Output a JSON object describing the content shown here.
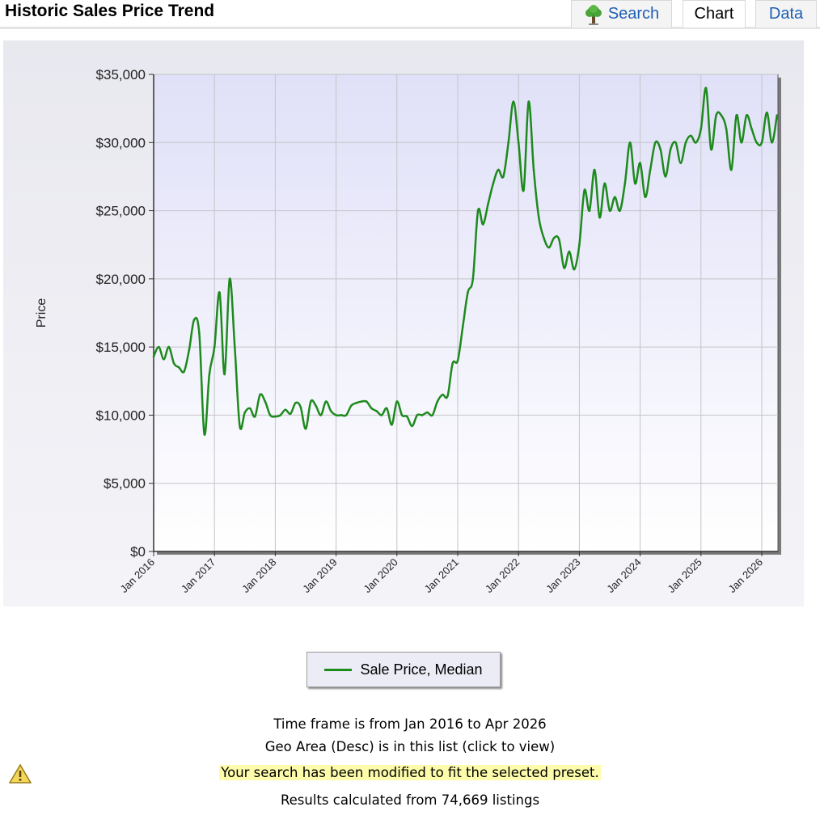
{
  "header": {
    "title": "Historic Sales Price Trend",
    "tabs": {
      "search": "Search",
      "chart": "Chart",
      "data": "Data"
    }
  },
  "colors": {
    "line": "#1e8a1e",
    "link": "#1f5fb5",
    "highlight": "#fdfcab"
  },
  "chart_data": {
    "type": "line",
    "title": "",
    "xlabel": "",
    "ylabel": "Price",
    "ylim": [
      0,
      35000
    ],
    "xlim": [
      "2016-01",
      "2026-04"
    ],
    "grid": true,
    "legend_position": "bottom",
    "y_ticks": [
      {
        "value": 0,
        "label": "$0"
      },
      {
        "value": 5000,
        "label": "$5,000"
      },
      {
        "value": 10000,
        "label": "$10,000"
      },
      {
        "value": 15000,
        "label": "$15,000"
      },
      {
        "value": 20000,
        "label": "$20,000"
      },
      {
        "value": 25000,
        "label": "$25,000"
      },
      {
        "value": 30000,
        "label": "$30,000"
      },
      {
        "value": 35000,
        "label": "$35,000"
      }
    ],
    "x_ticks": [
      {
        "value": "2016-01",
        "label": "Jan 2016"
      },
      {
        "value": "2017-01",
        "label": "Jan 2017"
      },
      {
        "value": "2018-01",
        "label": "Jan 2018"
      },
      {
        "value": "2019-01",
        "label": "Jan 2019"
      },
      {
        "value": "2020-01",
        "label": "Jan 2020"
      },
      {
        "value": "2021-01",
        "label": "Jan 2021"
      },
      {
        "value": "2022-01",
        "label": "Jan 2022"
      },
      {
        "value": "2023-01",
        "label": "Jan 2023"
      },
      {
        "value": "2024-01",
        "label": "Jan 2024"
      },
      {
        "value": "2025-01",
        "label": "Jan 2025"
      },
      {
        "value": "2026-01",
        "label": "Jan 2026"
      }
    ],
    "series": [
      {
        "name": "Sale Price, Median",
        "points": [
          [
            "2016-01",
            14300
          ],
          [
            "2016-02",
            15000
          ],
          [
            "2016-03",
            14100
          ],
          [
            "2016-04",
            15000
          ],
          [
            "2016-05",
            13800
          ],
          [
            "2016-06",
            13500
          ],
          [
            "2016-07",
            13200
          ],
          [
            "2016-08",
            14800
          ],
          [
            "2016-09",
            17000
          ],
          [
            "2016-10",
            16000
          ],
          [
            "2016-11",
            8600
          ],
          [
            "2016-12",
            13000
          ],
          [
            "2017-01",
            15000
          ],
          [
            "2017-02",
            19000
          ],
          [
            "2017-03",
            13000
          ],
          [
            "2017-04",
            20000
          ],
          [
            "2017-05",
            15000
          ],
          [
            "2017-06",
            9200
          ],
          [
            "2017-07",
            10200
          ],
          [
            "2017-08",
            10500
          ],
          [
            "2017-09",
            9900
          ],
          [
            "2017-10",
            11500
          ],
          [
            "2017-11",
            11000
          ],
          [
            "2017-12",
            10000
          ],
          [
            "2018-01",
            9900
          ],
          [
            "2018-02",
            10000
          ],
          [
            "2018-03",
            10400
          ],
          [
            "2018-04",
            10100
          ],
          [
            "2018-05",
            10900
          ],
          [
            "2018-06",
            10600
          ],
          [
            "2018-07",
            9000
          ],
          [
            "2018-08",
            11000
          ],
          [
            "2018-09",
            10700
          ],
          [
            "2018-10",
            10000
          ],
          [
            "2018-11",
            11000
          ],
          [
            "2018-12",
            10300
          ],
          [
            "2019-01",
            10000
          ],
          [
            "2019-02",
            10000
          ],
          [
            "2019-03",
            10000
          ],
          [
            "2019-04",
            10700
          ],
          [
            "2019-05",
            10900
          ],
          [
            "2019-06",
            11000
          ],
          [
            "2019-07",
            11000
          ],
          [
            "2019-08",
            10500
          ],
          [
            "2019-09",
            10300
          ],
          [
            "2019-10",
            10000
          ],
          [
            "2019-11",
            10500
          ],
          [
            "2019-12",
            9300
          ],
          [
            "2020-01",
            11000
          ],
          [
            "2020-02",
            10000
          ],
          [
            "2020-03",
            9900
          ],
          [
            "2020-04",
            9200
          ],
          [
            "2020-05",
            10000
          ],
          [
            "2020-06",
            10000
          ],
          [
            "2020-07",
            10200
          ],
          [
            "2020-08",
            10000
          ],
          [
            "2020-09",
            11000
          ],
          [
            "2020-10",
            11500
          ],
          [
            "2020-11",
            11400
          ],
          [
            "2020-12",
            13800
          ],
          [
            "2021-01",
            14000
          ],
          [
            "2021-02",
            16500
          ],
          [
            "2021-03",
            19000
          ],
          [
            "2021-04",
            20000
          ],
          [
            "2021-05",
            25000
          ],
          [
            "2021-06",
            24000
          ],
          [
            "2021-07",
            25500
          ],
          [
            "2021-08",
            27000
          ],
          [
            "2021-09",
            28000
          ],
          [
            "2021-10",
            27500
          ],
          [
            "2021-11",
            30000
          ],
          [
            "2021-12",
            33000
          ],
          [
            "2022-01",
            30000
          ],
          [
            "2022-02",
            26500
          ],
          [
            "2022-03",
            33000
          ],
          [
            "2022-04",
            28000
          ],
          [
            "2022-05",
            24500
          ],
          [
            "2022-06",
            23000
          ],
          [
            "2022-07",
            22300
          ],
          [
            "2022-08",
            23000
          ],
          [
            "2022-09",
            22900
          ],
          [
            "2022-10",
            20800
          ],
          [
            "2022-11",
            22000
          ],
          [
            "2022-12",
            20700
          ],
          [
            "2023-01",
            22500
          ],
          [
            "2023-02",
            26500
          ],
          [
            "2023-03",
            25000
          ],
          [
            "2023-04",
            28000
          ],
          [
            "2023-05",
            24500
          ],
          [
            "2023-06",
            27000
          ],
          [
            "2023-07",
            25000
          ],
          [
            "2023-08",
            26000
          ],
          [
            "2023-09",
            25000
          ],
          [
            "2023-10",
            27000
          ],
          [
            "2023-11",
            30000
          ],
          [
            "2023-12",
            27000
          ],
          [
            "2024-01",
            28500
          ],
          [
            "2024-02",
            26000
          ],
          [
            "2024-03",
            28000
          ],
          [
            "2024-04",
            30000
          ],
          [
            "2024-05",
            29500
          ],
          [
            "2024-06",
            27500
          ],
          [
            "2024-07",
            29500
          ],
          [
            "2024-08",
            30000
          ],
          [
            "2024-09",
            28500
          ],
          [
            "2024-10",
            30000
          ],
          [
            "2024-11",
            30500
          ],
          [
            "2024-12",
            30000
          ],
          [
            "2025-01",
            31000
          ],
          [
            "2025-02",
            34000
          ],
          [
            "2025-03",
            29500
          ],
          [
            "2025-04",
            32000
          ],
          [
            "2025-05",
            32000
          ],
          [
            "2025-06",
            31000
          ],
          [
            "2025-07",
            28000
          ],
          [
            "2025-08",
            32000
          ],
          [
            "2025-09",
            30000
          ],
          [
            "2025-10",
            32000
          ],
          [
            "2025-11",
            31000
          ],
          [
            "2025-12",
            30000
          ],
          [
            "2026-01",
            30000
          ],
          [
            "2026-02",
            32200
          ],
          [
            "2026-03",
            30000
          ],
          [
            "2026-04",
            32000
          ]
        ]
      }
    ]
  },
  "footer": {
    "timeframe": "Time frame is from Jan 2016 to Apr 2026",
    "geo": "Geo Area (Desc) is in this list (click to view)",
    "warning": "Your search has been modified to fit the selected preset.",
    "results": "Results calculated from 74,669 listings"
  },
  "icons": {
    "search_tab": "tree-icon",
    "warning": "warning-icon"
  }
}
